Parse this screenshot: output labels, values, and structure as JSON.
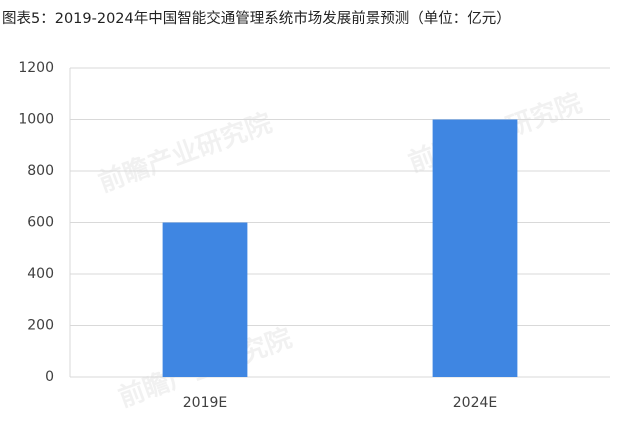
{
  "chart_data": {
    "type": "bar",
    "title": "图表5：2019-2024年中国智能交通管理系统市场发展前景预测（单位：亿元）",
    "watermark": "前瞻产业研究院",
    "categories": [
      "2019E",
      "2024E"
    ],
    "values": [
      600,
      1000
    ],
    "color": "#3f86e2",
    "ylim": [
      0,
      1200
    ],
    "yticks": [
      0,
      200,
      400,
      600,
      800,
      1000,
      1200
    ],
    "grid": true
  }
}
